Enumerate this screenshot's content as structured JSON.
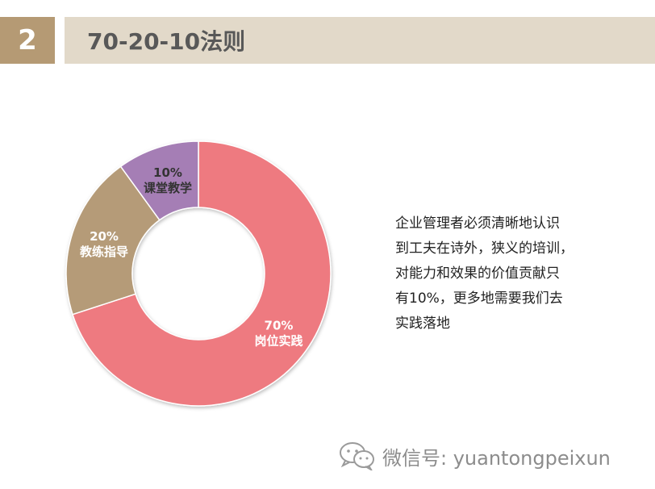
{
  "header": {
    "number": "2",
    "title": "70-20-10法则"
  },
  "description": "企业管理者必须清晰地认识\n到工夫在诗外，狭义的培训，\n对能力和效果的价值贡献只\n有10%，更多地需要我们去\n实践落地",
  "watermark": {
    "text": "微信号: yuantongpeixun",
    "icon": "wechat-icon"
  },
  "chart_data": {
    "type": "pie",
    "donut": true,
    "slices": [
      {
        "label": "岗位实践",
        "value": 70,
        "value_text": "70%",
        "color": "#EE7A80"
      },
      {
        "label": "教练指导",
        "value": 20,
        "value_text": "20%",
        "color": "#B59B78"
      },
      {
        "label": "课堂教学",
        "value": 10,
        "value_text": "10%",
        "color": "#A57EB5"
      }
    ]
  }
}
